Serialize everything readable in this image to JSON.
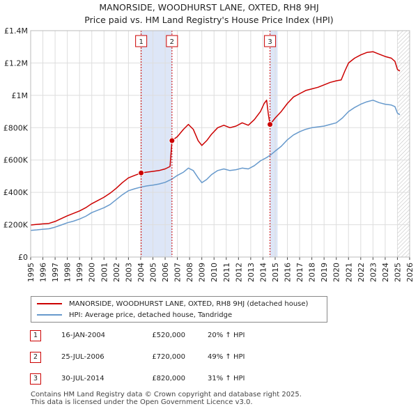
{
  "header": {
    "title": "MANORSIDE, WOODHURST LANE, OXTED, RH8 9HJ",
    "subtitle": "Price paid vs. HM Land Registry's House Price Index (HPI)"
  },
  "colors": {
    "property": "#cc0000",
    "hpi": "#6699cc",
    "shade": "#dde6f7",
    "marker_line": "#cc0000"
  },
  "chart_data": {
    "type": "line",
    "title": "MANORSIDE, WOODHURST LANE, OXTED, RH8 9HJ",
    "subtitle": "Price paid vs. HM Land Registry's House Price Index (HPI)",
    "xlim": [
      1995,
      2026
    ],
    "ylim": [
      0,
      1400000
    ],
    "x_ticks": [
      "1995",
      "1996",
      "1997",
      "1998",
      "1999",
      "2000",
      "2001",
      "2002",
      "2003",
      "2004",
      "2005",
      "2006",
      "2007",
      "2008",
      "2009",
      "2010",
      "2011",
      "2012",
      "2013",
      "2014",
      "2015",
      "2016",
      "2017",
      "2018",
      "2019",
      "2020",
      "2021",
      "2022",
      "2023",
      "2024",
      "2025",
      "2026"
    ],
    "y_ticks": [
      {
        "value": 0,
        "label": "£0"
      },
      {
        "value": 200000,
        "label": "£200K"
      },
      {
        "value": 400000,
        "label": "£400K"
      },
      {
        "value": 600000,
        "label": "£600K"
      },
      {
        "value": 800000,
        "label": "£800K"
      },
      {
        "value": 1000000,
        "label": "£1M"
      },
      {
        "value": 1200000,
        "label": "£1.2M"
      },
      {
        "value": 1400000,
        "label": "£1.4M"
      }
    ],
    "grid": true,
    "shaded_ranges": [
      [
        2004.04,
        2006.56
      ],
      [
        2014.58,
        2015.2
      ]
    ],
    "hatched_after": 2025.0,
    "series": [
      {
        "name": "MANORSIDE, WOODHURST LANE, OXTED, RH8 9HJ (detached house)",
        "color": "#cc0000",
        "points": [
          [
            1995.0,
            198000
          ],
          [
            1995.5,
            202000
          ],
          [
            1996.0,
            205000
          ],
          [
            1996.5,
            208000
          ],
          [
            1997.0,
            220000
          ],
          [
            1997.5,
            238000
          ],
          [
            1998.0,
            255000
          ],
          [
            1998.5,
            270000
          ],
          [
            1999.0,
            285000
          ],
          [
            1999.5,
            305000
          ],
          [
            2000.0,
            330000
          ],
          [
            2000.5,
            350000
          ],
          [
            2001.0,
            370000
          ],
          [
            2001.5,
            395000
          ],
          [
            2002.0,
            425000
          ],
          [
            2002.5,
            460000
          ],
          [
            2003.0,
            490000
          ],
          [
            2003.5,
            505000
          ],
          [
            2004.04,
            520000
          ],
          [
            2004.5,
            525000
          ],
          [
            2005.0,
            530000
          ],
          [
            2005.5,
            535000
          ],
          [
            2006.0,
            545000
          ],
          [
            2006.4,
            560000
          ],
          [
            2006.45,
            610000
          ],
          [
            2006.56,
            720000
          ],
          [
            2007.0,
            745000
          ],
          [
            2007.5,
            790000
          ],
          [
            2007.9,
            820000
          ],
          [
            2008.3,
            790000
          ],
          [
            2008.7,
            720000
          ],
          [
            2009.0,
            690000
          ],
          [
            2009.4,
            720000
          ],
          [
            2009.8,
            760000
          ],
          [
            2010.3,
            800000
          ],
          [
            2010.8,
            815000
          ],
          [
            2011.3,
            800000
          ],
          [
            2011.8,
            810000
          ],
          [
            2012.3,
            830000
          ],
          [
            2012.8,
            815000
          ],
          [
            2013.3,
            850000
          ],
          [
            2013.8,
            900000
          ],
          [
            2014.1,
            950000
          ],
          [
            2014.3,
            970000
          ],
          [
            2014.45,
            880000
          ],
          [
            2014.58,
            820000
          ],
          [
            2015.0,
            860000
          ],
          [
            2015.5,
            900000
          ],
          [
            2016.0,
            950000
          ],
          [
            2016.5,
            990000
          ],
          [
            2017.0,
            1010000
          ],
          [
            2017.5,
            1030000
          ],
          [
            2018.0,
            1040000
          ],
          [
            2018.5,
            1050000
          ],
          [
            2019.0,
            1065000
          ],
          [
            2019.5,
            1080000
          ],
          [
            2020.0,
            1090000
          ],
          [
            2020.4,
            1095000
          ],
          [
            2020.7,
            1150000
          ],
          [
            2021.0,
            1200000
          ],
          [
            2021.5,
            1230000
          ],
          [
            2022.0,
            1250000
          ],
          [
            2022.5,
            1265000
          ],
          [
            2023.0,
            1270000
          ],
          [
            2023.5,
            1255000
          ],
          [
            2024.0,
            1240000
          ],
          [
            2024.5,
            1230000
          ],
          [
            2024.8,
            1210000
          ],
          [
            2025.0,
            1160000
          ],
          [
            2025.2,
            1150000
          ]
        ]
      },
      {
        "name": "HPI: Average price, detached house, Tandridge",
        "color": "#6699cc",
        "points": [
          [
            1995.0,
            165000
          ],
          [
            1995.5,
            168000
          ],
          [
            1996.0,
            172000
          ],
          [
            1996.5,
            175000
          ],
          [
            1997.0,
            185000
          ],
          [
            1997.5,
            198000
          ],
          [
            1998.0,
            212000
          ],
          [
            1998.5,
            222000
          ],
          [
            1999.0,
            235000
          ],
          [
            1999.5,
            252000
          ],
          [
            2000.0,
            275000
          ],
          [
            2000.5,
            290000
          ],
          [
            2001.0,
            305000
          ],
          [
            2001.5,
            325000
          ],
          [
            2002.0,
            355000
          ],
          [
            2002.5,
            385000
          ],
          [
            2003.0,
            410000
          ],
          [
            2003.5,
            422000
          ],
          [
            2004.0,
            432000
          ],
          [
            2004.5,
            440000
          ],
          [
            2005.0,
            445000
          ],
          [
            2005.5,
            452000
          ],
          [
            2006.0,
            462000
          ],
          [
            2006.5,
            480000
          ],
          [
            2007.0,
            505000
          ],
          [
            2007.5,
            525000
          ],
          [
            2007.9,
            550000
          ],
          [
            2008.3,
            535000
          ],
          [
            2008.7,
            490000
          ],
          [
            2009.0,
            460000
          ],
          [
            2009.4,
            480000
          ],
          [
            2009.8,
            510000
          ],
          [
            2010.3,
            535000
          ],
          [
            2010.8,
            545000
          ],
          [
            2011.3,
            535000
          ],
          [
            2011.8,
            540000
          ],
          [
            2012.3,
            550000
          ],
          [
            2012.8,
            545000
          ],
          [
            2013.3,
            565000
          ],
          [
            2013.8,
            595000
          ],
          [
            2014.3,
            615000
          ],
          [
            2014.6,
            630000
          ],
          [
            2015.0,
            655000
          ],
          [
            2015.5,
            685000
          ],
          [
            2016.0,
            725000
          ],
          [
            2016.5,
            755000
          ],
          [
            2017.0,
            775000
          ],
          [
            2017.5,
            790000
          ],
          [
            2018.0,
            800000
          ],
          [
            2018.5,
            805000
          ],
          [
            2019.0,
            810000
          ],
          [
            2019.5,
            820000
          ],
          [
            2020.0,
            830000
          ],
          [
            2020.5,
            860000
          ],
          [
            2021.0,
            900000
          ],
          [
            2021.5,
            925000
          ],
          [
            2022.0,
            945000
          ],
          [
            2022.5,
            960000
          ],
          [
            2023.0,
            970000
          ],
          [
            2023.5,
            955000
          ],
          [
            2024.0,
            945000
          ],
          [
            2024.5,
            940000
          ],
          [
            2024.8,
            930000
          ],
          [
            2025.0,
            890000
          ],
          [
            2025.2,
            880000
          ]
        ]
      }
    ],
    "sales": [
      {
        "label": "1",
        "x": 2004.04,
        "value": 520000
      },
      {
        "label": "2",
        "x": 2006.56,
        "value": 720000
      },
      {
        "label": "3",
        "x": 2014.58,
        "value": 820000
      }
    ]
  },
  "legend": {
    "property": "MANORSIDE, WOODHURST LANE, OXTED, RH8 9HJ (detached house)",
    "hpi": "HPI: Average price, detached house, Tandridge"
  },
  "sales_table": [
    {
      "num": "1",
      "date": "16-JAN-2004",
      "price": "£520,000",
      "hpi": "20% ↑ HPI"
    },
    {
      "num": "2",
      "date": "25-JUL-2006",
      "price": "£720,000",
      "hpi": "49% ↑ HPI"
    },
    {
      "num": "3",
      "date": "30-JUL-2014",
      "price": "£820,000",
      "hpi": "31% ↑ HPI"
    }
  ],
  "footer": {
    "line1": "Contains HM Land Registry data © Crown copyright and database right 2025.",
    "line2": "This data is licensed under the Open Government Licence v3.0."
  }
}
